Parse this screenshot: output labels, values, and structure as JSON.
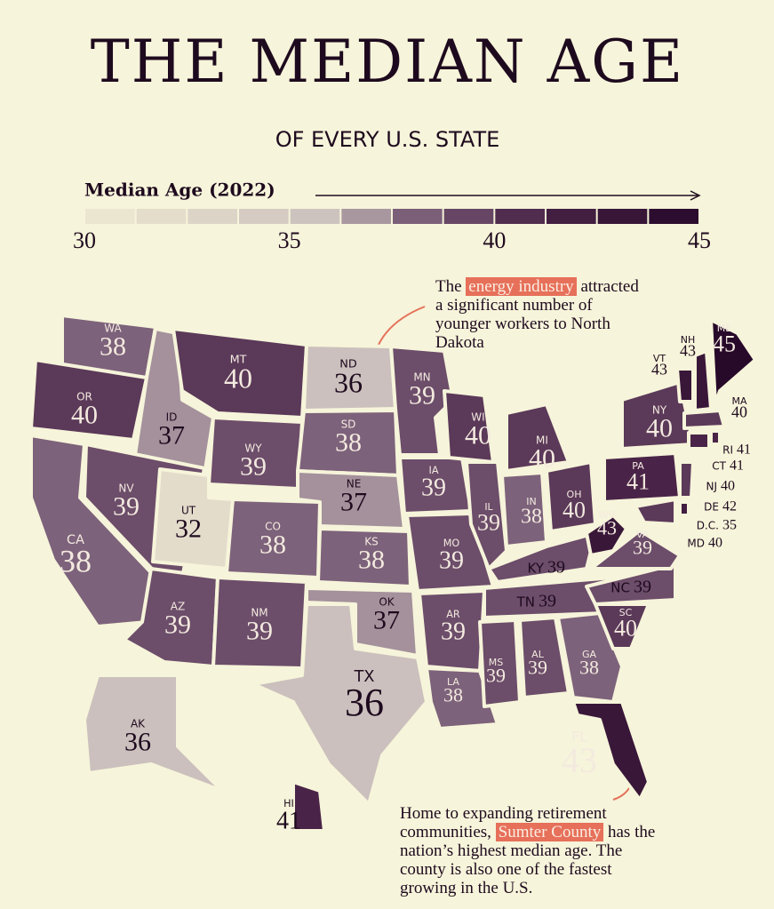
{
  "header": {
    "title": "THE MEDIAN AGE",
    "subtitle": "OF EVERY U.S. STATE"
  },
  "chart_data": {
    "type": "choropleth",
    "legend_title": "Median Age (2022)",
    "colorlim": [
      30,
      45
    ],
    "ticks": [
      30,
      35,
      40,
      45
    ],
    "color_scale": [
      {
        "value": 30,
        "color": "#efead2"
      },
      {
        "value": 36,
        "color": "#cbc0bd"
      },
      {
        "value": 38,
        "color": "#7d627b"
      },
      {
        "value": 41,
        "color": "#4a2448"
      },
      {
        "value": 45,
        "color": "#27092a"
      }
    ],
    "states": [
      {
        "name": "WA",
        "value": 38
      },
      {
        "name": "OR",
        "value": 40
      },
      {
        "name": "CA",
        "value": 38
      },
      {
        "name": "ID",
        "value": 37
      },
      {
        "name": "NV",
        "value": 39
      },
      {
        "name": "MT",
        "value": 40
      },
      {
        "name": "WY",
        "value": 39
      },
      {
        "name": "UT",
        "value": 32
      },
      {
        "name": "CO",
        "value": 38
      },
      {
        "name": "AZ",
        "value": 39
      },
      {
        "name": "NM",
        "value": 39
      },
      {
        "name": "ND",
        "value": 36
      },
      {
        "name": "SD",
        "value": 38
      },
      {
        "name": "NE",
        "value": 37
      },
      {
        "name": "KS",
        "value": 38
      },
      {
        "name": "OK",
        "value": 37
      },
      {
        "name": "TX",
        "value": 36
      },
      {
        "name": "MN",
        "value": 39
      },
      {
        "name": "IA",
        "value": 39
      },
      {
        "name": "MO",
        "value": 39
      },
      {
        "name": "AR",
        "value": 39
      },
      {
        "name": "LA",
        "value": 38
      },
      {
        "name": "WI",
        "value": 40
      },
      {
        "name": "IL",
        "value": 39
      },
      {
        "name": "MI",
        "value": 40
      },
      {
        "name": "IN",
        "value": 38
      },
      {
        "name": "OH",
        "value": 40
      },
      {
        "name": "KY",
        "value": 39
      },
      {
        "name": "TN",
        "value": 39
      },
      {
        "name": "MS",
        "value": 39
      },
      {
        "name": "AL",
        "value": 39
      },
      {
        "name": "GA",
        "value": 38
      },
      {
        "name": "FL",
        "value": 43
      },
      {
        "name": "SC",
        "value": 40
      },
      {
        "name": "NC",
        "value": 39
      },
      {
        "name": "VA",
        "value": 39
      },
      {
        "name": "WV",
        "value": 43
      },
      {
        "name": "PA",
        "value": 41
      },
      {
        "name": "NY",
        "value": 40
      },
      {
        "name": "VT",
        "value": 43
      },
      {
        "name": "NH",
        "value": 43
      },
      {
        "name": "ME",
        "value": 45
      },
      {
        "name": "MA",
        "value": 40
      },
      {
        "name": "RI",
        "value": 41
      },
      {
        "name": "CT",
        "value": 41
      },
      {
        "name": "NJ",
        "value": 40
      },
      {
        "name": "DE",
        "value": 42
      },
      {
        "name": "D.C.",
        "value": 35
      },
      {
        "name": "MD",
        "value": 40
      },
      {
        "name": "AK",
        "value": 36
      },
      {
        "name": "HI",
        "value": 41
      }
    ]
  },
  "annotations": [
    {
      "before": "The ",
      "highlight": "energy industry",
      "after": " attracted a significant number of younger workers to North Dakota"
    },
    {
      "before": "Home to expanding retirement communities, ",
      "highlight": "Sumter County",
      "after": " has the nation’s highest median age. The county is also one of the fastest growing in the U.S."
    }
  ]
}
